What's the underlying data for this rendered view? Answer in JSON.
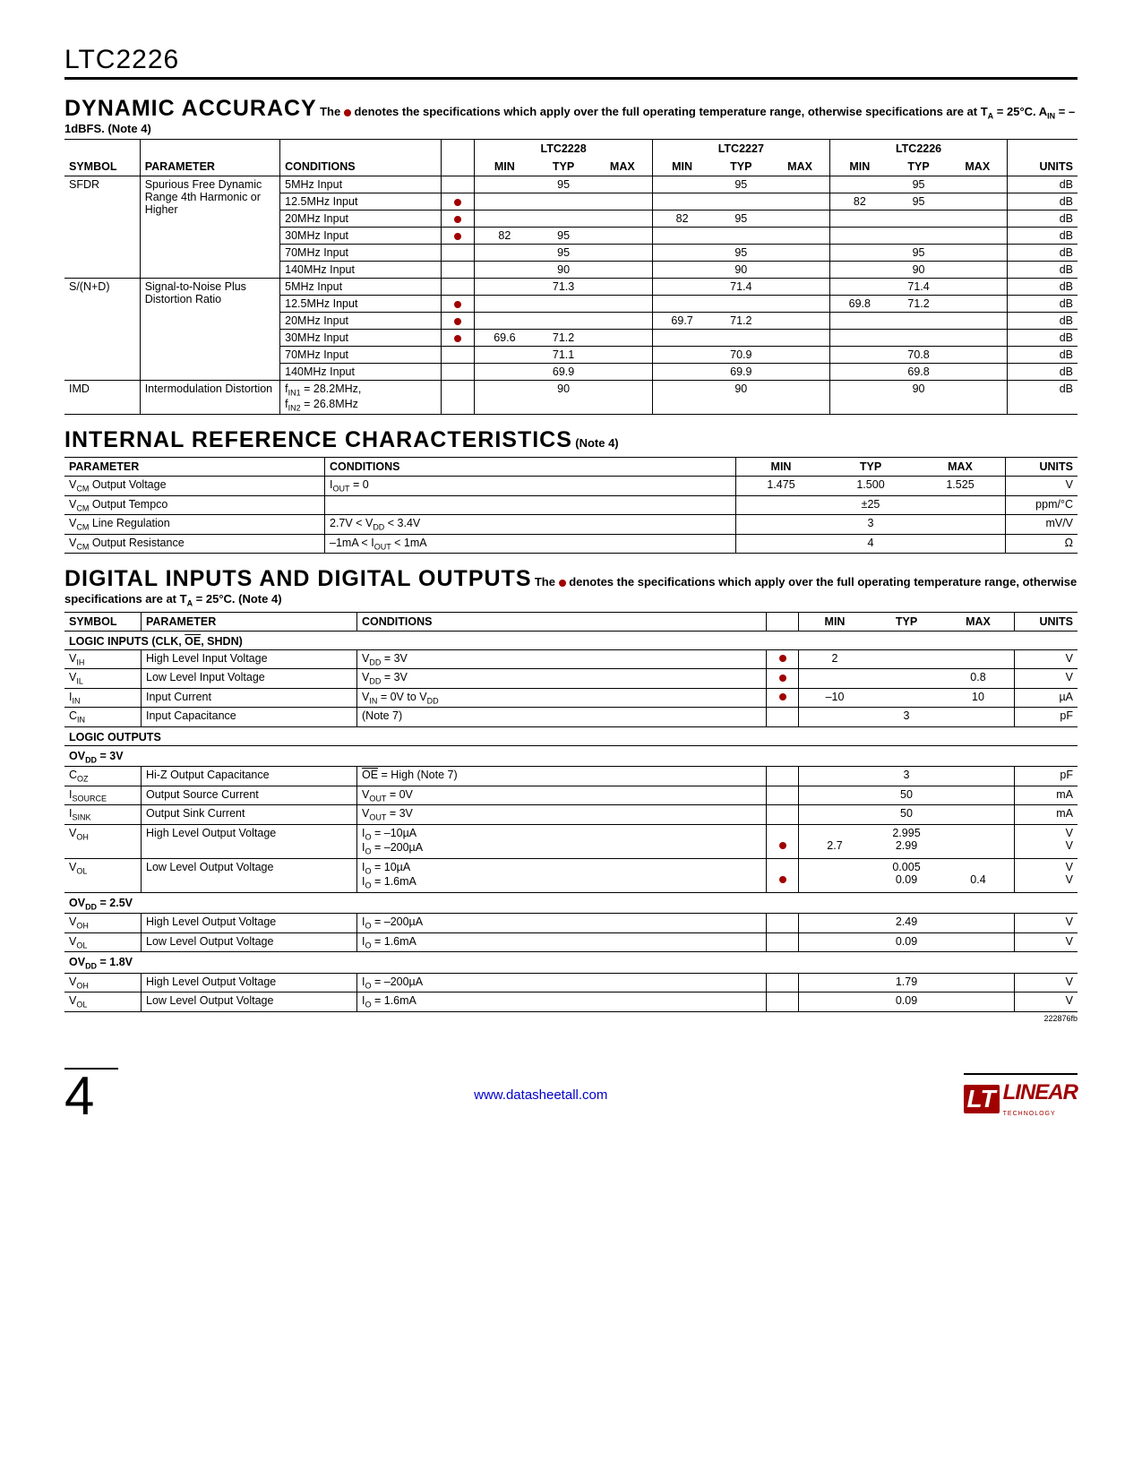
{
  "part_number": "LTC2226",
  "page_number": "4",
  "doc_code": "222876fb",
  "footer_link": "www.datasheetall.com",
  "logo": {
    "brand": "LINEAR",
    "sub": "TECHNOLOGY",
    "lt": "LT"
  },
  "dynamic": {
    "title": "DYNAMIC ACCURACY",
    "sub": " The ● denotes the specifications which apply over the full operating temperature range, otherwise specifications are at T",
    "sub_a": "A",
    "sub2": " = 25°C. A",
    "sub_in": "IN",
    "sub3": " = –1dBFS. (Note 4)",
    "cols": {
      "symbol": "SYMBOL",
      "parameter": "PARAMETER",
      "conditions": "CONDITIONS",
      "min": "MIN",
      "typ": "TYP",
      "max": "MAX",
      "units": "UNITS",
      "ltc2228": "LTC2228",
      "ltc2227": "LTC2227",
      "ltc2226": "LTC2226"
    },
    "groups": [
      {
        "symbol": "SFDR",
        "parameter": "Spurious Free Dynamic Range 4th Harmonic or Higher",
        "rows": [
          {
            "cond": "5MHz Input",
            "dot": false,
            "a": {
              "typ": "95"
            },
            "b": {
              "typ": "95"
            },
            "c": {
              "typ": "95"
            },
            "units": "dB"
          },
          {
            "cond": "12.5MHz Input",
            "dot": true,
            "a": {},
            "b": {},
            "c": {
              "min": "82",
              "typ": "95"
            },
            "units": "dB"
          },
          {
            "cond": "20MHz Input",
            "dot": true,
            "a": {},
            "b": {
              "min": "82",
              "typ": "95"
            },
            "c": {},
            "units": "dB"
          },
          {
            "cond": "30MHz Input",
            "dot": true,
            "a": {
              "min": "82",
              "typ": "95"
            },
            "b": {},
            "c": {},
            "units": "dB"
          },
          {
            "cond": "70MHz Input",
            "dot": false,
            "a": {
              "typ": "95"
            },
            "b": {
              "typ": "95"
            },
            "c": {
              "typ": "95"
            },
            "units": "dB"
          },
          {
            "cond": "140MHz Input",
            "dot": false,
            "a": {
              "typ": "90"
            },
            "b": {
              "typ": "90"
            },
            "c": {
              "typ": "90"
            },
            "units": "dB"
          }
        ]
      },
      {
        "symbol": "S/(N+D)",
        "parameter": "Signal-to-Noise Plus Distortion Ratio",
        "rows": [
          {
            "cond": "5MHz Input",
            "dot": false,
            "a": {
              "typ": "71.3"
            },
            "b": {
              "typ": "71.4"
            },
            "c": {
              "typ": "71.4"
            },
            "units": "dB"
          },
          {
            "cond": "12.5MHz Input",
            "dot": true,
            "a": {},
            "b": {},
            "c": {
              "min": "69.8",
              "typ": "71.2"
            },
            "units": "dB"
          },
          {
            "cond": "20MHz Input",
            "dot": true,
            "a": {},
            "b": {
              "min": "69.7",
              "typ": "71.2"
            },
            "c": {},
            "units": "dB"
          },
          {
            "cond": "30MHz Input",
            "dot": true,
            "a": {
              "min": "69.6",
              "typ": "71.2"
            },
            "b": {},
            "c": {},
            "units": "dB"
          },
          {
            "cond": "70MHz Input",
            "dot": false,
            "a": {
              "typ": "71.1"
            },
            "b": {
              "typ": "70.9"
            },
            "c": {
              "typ": "70.8"
            },
            "units": "dB"
          },
          {
            "cond": "140MHz Input",
            "dot": false,
            "a": {
              "typ": "69.9"
            },
            "b": {
              "typ": "69.9"
            },
            "c": {
              "typ": "69.8"
            },
            "units": "dB"
          }
        ]
      },
      {
        "symbol": "IMD",
        "parameter": "Intermodulation Distortion",
        "rows": [
          {
            "cond_html": "f<sub>IN1</sub> = 28.2MHz,<br>f<sub>IN2</sub> = 26.8MHz",
            "dot": false,
            "a": {
              "typ": "90"
            },
            "b": {
              "typ": "90"
            },
            "c": {
              "typ": "90"
            },
            "units": "dB"
          }
        ]
      }
    ]
  },
  "internal": {
    "title": "INTERNAL REFERENCE CHARACTERISTICS",
    "note": " (Note 4)",
    "cols": {
      "parameter": "PARAMETER",
      "conditions": "CONDITIONS",
      "min": "MIN",
      "typ": "TYP",
      "max": "MAX",
      "units": "UNITS"
    },
    "rows": [
      {
        "param_html": "V<sub>CM</sub> Output Voltage",
        "cond_html": "I<sub>OUT</sub> = 0",
        "min": "1.475",
        "typ": "1.500",
        "max": "1.525",
        "units": "V"
      },
      {
        "param_html": "V<sub>CM</sub> Output Tempco",
        "cond_html": "",
        "min": "",
        "typ": "±25",
        "max": "",
        "units": "ppm/°C"
      },
      {
        "param_html": "V<sub>CM</sub> Line Regulation",
        "cond_html": "2.7V < V<sub>DD</sub> < 3.4V",
        "min": "",
        "typ": "3",
        "max": "",
        "units": "mV/V"
      },
      {
        "param_html": "V<sub>CM</sub> Output Resistance",
        "cond_html": "–1mA < I<sub>OUT</sub> < 1mA",
        "min": "",
        "typ": "4",
        "max": "",
        "units": "Ω"
      }
    ]
  },
  "digital": {
    "title": "DIGITAL INPUTS AND DIGITAL OUTPUTS",
    "sub": " The ● denotes the specifications which apply over the full operating temperature range, otherwise specifications are at T",
    "sub_a": "A",
    "sub2": " = 25°C. (Note 4)",
    "cols": {
      "symbol": "SYMBOL",
      "parameter": "PARAMETER",
      "conditions": "CONDITIONS",
      "min": "MIN",
      "typ": "TYP",
      "max": "MAX",
      "units": "UNITS"
    },
    "subsections": [
      {
        "header_html": "LOGIC INPUTS (CLK, <span class='overline'>OE</span>, SHDN)",
        "rows": [
          {
            "sym_html": "V<sub>IH</sub>",
            "param": "High Level Input Voltage",
            "cond_html": "V<sub>DD</sub> = 3V",
            "dot": true,
            "min": "2",
            "typ": "",
            "max": "",
            "units": "V"
          },
          {
            "sym_html": "V<sub>IL</sub>",
            "param": "Low Level Input Voltage",
            "cond_html": "V<sub>DD</sub> = 3V",
            "dot": true,
            "min": "",
            "typ": "",
            "max": "0.8",
            "units": "V"
          },
          {
            "sym_html": "I<sub>IN</sub>",
            "param": "Input Current",
            "cond_html": "V<sub>IN</sub> = 0V to V<sub>DD</sub>",
            "dot": true,
            "min": "–10",
            "typ": "",
            "max": "10",
            "units": "µA"
          },
          {
            "sym_html": "C<sub>IN</sub>",
            "param": "Input Capacitance",
            "cond_html": "(Note 7)",
            "dot": false,
            "min": "",
            "typ": "3",
            "max": "",
            "units": "pF"
          }
        ]
      },
      {
        "header_html": "LOGIC OUTPUTS",
        "rows": []
      },
      {
        "header_html": "OV<sub>DD</sub> = 3V",
        "rows": [
          {
            "sym_html": "C<sub>OZ</sub>",
            "param": "Hi-Z Output Capacitance",
            "cond_html": "<span class='overline'>OE</span> = High (Note 7)",
            "dot": false,
            "min": "",
            "typ": "3",
            "max": "",
            "units": "pF"
          },
          {
            "sym_html": "I<sub>SOURCE</sub>",
            "param": "Output Source Current",
            "cond_html": "V<sub>OUT</sub> = 0V",
            "dot": false,
            "min": "",
            "typ": "50",
            "max": "",
            "units": "mA"
          },
          {
            "sym_html": "I<sub>SINK</sub>",
            "param": "Output Sink Current",
            "cond_html": "V<sub>OUT</sub> = 3V",
            "dot": false,
            "min": "",
            "typ": "50",
            "max": "",
            "units": "mA"
          },
          {
            "sym_html": "V<sub>OH</sub>",
            "param": "High Level Output Voltage",
            "cond_html": "I<sub>O</sub> = –10µA<br>I<sub>O</sub> = –200µA",
            "dot_html": "<br>●",
            "min_html": "<br>2.7",
            "typ_html": "2.995<br>2.99",
            "max_html": "",
            "units_html": "V<br>V"
          },
          {
            "sym_html": "V<sub>OL</sub>",
            "param": "Low Level Output Voltage",
            "cond_html": "I<sub>O</sub> = 10µA<br>I<sub>O</sub> = 1.6mA",
            "dot_html": "<br>●",
            "min_html": "",
            "typ_html": "0.005<br>0.09",
            "max_html": "<br>0.4",
            "units_html": "V<br>V"
          }
        ]
      },
      {
        "header_html": "OV<sub>DD</sub> = 2.5V",
        "rows": [
          {
            "sym_html": "V<sub>OH</sub>",
            "param": "High Level Output Voltage",
            "cond_html": "I<sub>O</sub> = –200µA",
            "dot": false,
            "min": "",
            "typ": "2.49",
            "max": "",
            "units": "V"
          },
          {
            "sym_html": "V<sub>OL</sub>",
            "param": "Low Level Output Voltage",
            "cond_html": "I<sub>O</sub> = 1.6mA",
            "dot": false,
            "min": "",
            "typ": "0.09",
            "max": "",
            "units": "V"
          }
        ]
      },
      {
        "header_html": "OV<sub>DD</sub> = 1.8V",
        "rows": [
          {
            "sym_html": "V<sub>OH</sub>",
            "param": "High Level Output Voltage",
            "cond_html": "I<sub>O</sub> = –200µA",
            "dot": false,
            "min": "",
            "typ": "1.79",
            "max": "",
            "units": "V"
          },
          {
            "sym_html": "V<sub>OL</sub>",
            "param": "Low Level Output Voltage",
            "cond_html": "I<sub>O</sub> = 1.6mA",
            "dot": false,
            "min": "",
            "typ": "0.09",
            "max": "",
            "units": "V"
          }
        ]
      }
    ]
  }
}
